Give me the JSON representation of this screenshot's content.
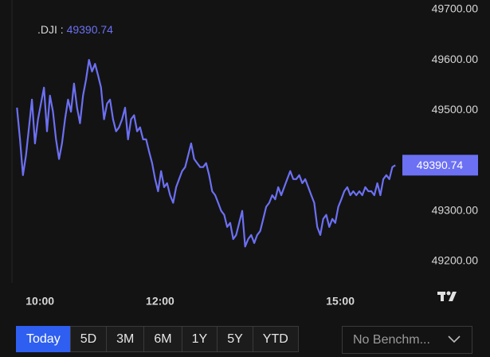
{
  "chart_data": {
    "type": "line",
    "series": [
      {
        "name": ".DJI",
        "color": "#6c70f3",
        "values": [
          49505,
          49442,
          49371,
          49410,
          49466,
          49521,
          49434,
          49482,
          49513,
          49545,
          49458,
          49529,
          49497,
          49442,
          49403,
          49434,
          49482,
          49521,
          49497,
          49553,
          49505,
          49474,
          49529,
          49561,
          49600,
          49577,
          49592,
          49569,
          49545,
          49482,
          49513,
          49521,
          49482,
          49458,
          49466,
          49482,
          49505,
          49442,
          49482,
          49490,
          49458,
          49466,
          49442,
          49442,
          49418,
          49395,
          49363,
          49339,
          49379,
          49347,
          49355,
          49331,
          49316,
          49347,
          49363,
          49379,
          49387,
          49410,
          49434,
          49403,
          49395,
          49387,
          49387,
          49395,
          49371,
          49339,
          49331,
          49316,
          49300,
          49292,
          49268,
          49276,
          49244,
          49252,
          49276,
          49300,
          49229,
          49244,
          49252,
          49236,
          49252,
          49260,
          49284,
          49308,
          49316,
          49331,
          49323,
          49347,
          49331,
          49347,
          49363,
          49379,
          49363,
          49363,
          49371,
          49355,
          49363,
          49347,
          49331,
          49316,
          49268,
          49252,
          49284,
          49292,
          49268,
          49284,
          49276,
          49308,
          49323,
          49339,
          49347,
          49331,
          49339,
          49331,
          49339,
          49331,
          49347,
          49339,
          49339,
          49331,
          49355,
          49331,
          49363,
          49371,
          49363,
          49387,
          49390.74
        ]
      }
    ],
    "x": [
      577,
      580,
      583,
      586,
      589,
      592,
      595,
      598,
      601,
      604,
      607,
      610,
      613,
      616,
      619,
      622,
      625,
      628,
      631,
      634,
      637,
      640,
      643,
      646,
      649,
      652,
      655,
      658,
      661,
      664,
      667,
      670,
      673,
      676,
      679,
      682,
      685,
      688,
      691,
      694,
      697,
      700,
      703,
      706,
      709,
      712,
      715,
      718,
      721,
      724,
      727,
      730,
      733,
      736,
      739,
      742,
      745,
      748,
      751,
      754,
      757,
      760,
      763,
      766,
      769,
      772,
      775,
      778,
      781,
      784,
      787,
      790,
      793,
      796,
      799,
      802,
      805,
      808,
      811,
      814,
      817,
      820,
      823,
      826,
      829,
      832,
      835,
      838,
      841,
      844,
      847,
      850,
      853,
      856,
      859,
      862,
      865,
      868,
      871,
      874,
      877,
      880,
      883,
      886,
      889,
      892,
      895,
      898,
      901,
      904,
      907,
      910,
      913,
      916,
      919,
      922,
      925,
      928,
      931,
      934,
      937,
      940,
      943,
      946,
      949,
      952,
      955
    ],
    "xlim": [
      572,
      962
    ],
    "xticks": [
      {
        "value": 600,
        "label": "10:00"
      },
      {
        "value": 720,
        "label": "12:00"
      },
      {
        "value": 900,
        "label": "15:00"
      }
    ],
    "ylim": [
      49160,
      49700
    ],
    "yticks": [
      {
        "value": 49200,
        "label": "49200.00"
      },
      {
        "value": 49300,
        "label": "49300.00"
      },
      {
        "value": 49500,
        "label": "49500.00"
      },
      {
        "value": 49600,
        "label": "49600.00"
      },
      {
        "value": 49700,
        "label": "49700.00"
      }
    ],
    "grid": false
  },
  "ranges": [
    "Today",
    "5D",
    "3M",
    "6M",
    "1Y",
    "5Y",
    "YTD"
  ],
  "selected_range": "Today",
  "benchmark": "No Benchm..."
}
